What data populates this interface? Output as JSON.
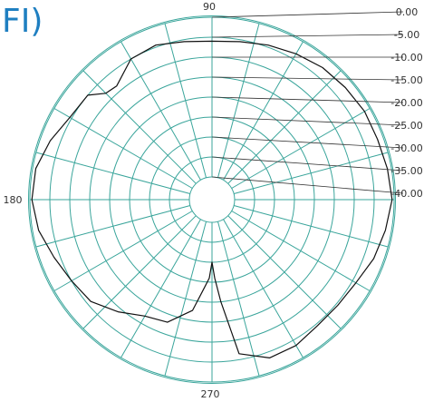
{
  "panel_label": "FI)",
  "chart_data": {
    "type": "line",
    "subtype": "polar",
    "title": "",
    "angle_labels": [
      "90",
      "180",
      "270"
    ],
    "radial_ticks": [
      0,
      -5,
      -10,
      -15,
      -20,
      -25,
      -30,
      -35,
      -40
    ],
    "radial_tick_labels": [
      "0.00",
      "-5.00",
      "-10.00",
      "-15.00",
      "-20.00",
      "-25.00",
      "-30.00",
      "-35.00",
      "-40.00"
    ],
    "rlim": [
      -40,
      0
    ],
    "angular_grid_step_deg": 15,
    "grid": true,
    "colors": {
      "grid": "#3aa59b",
      "trace": "#111111",
      "label": "#1f7fc1"
    },
    "series": [
      {
        "angle_deg": [
          0,
          10,
          20,
          30,
          40,
          50,
          60,
          70,
          80,
          90,
          100,
          110,
          120,
          130,
          135,
          140,
          150,
          160,
          170,
          180,
          190,
          200,
          210,
          220,
          230,
          240,
          250,
          260,
          265,
          268,
          270,
          272,
          275,
          280,
          290,
          300,
          310,
          320,
          330,
          340,
          350
        ],
        "r_db": [
          -0.5,
          -1.0,
          -1.5,
          -1.5,
          -2.0,
          -2.5,
          -3.5,
          -4.5,
          -5.5,
          -6.0,
          -5.5,
          -4.5,
          -5.0,
          -8.5,
          -8.0,
          -5.0,
          -4.5,
          -2.5,
          -0.8,
          -0.5,
          -1.5,
          -3.5,
          -5.0,
          -6.0,
          -9.0,
          -12.0,
          -13.0,
          -17.5,
          -23.5,
          -26.0,
          -30.0,
          -26.0,
          -20.0,
          -6.5,
          -3.5,
          -3.5,
          -4.5,
          -4.5,
          -4.0,
          -2.5,
          -1.5
        ]
      }
    ]
  }
}
